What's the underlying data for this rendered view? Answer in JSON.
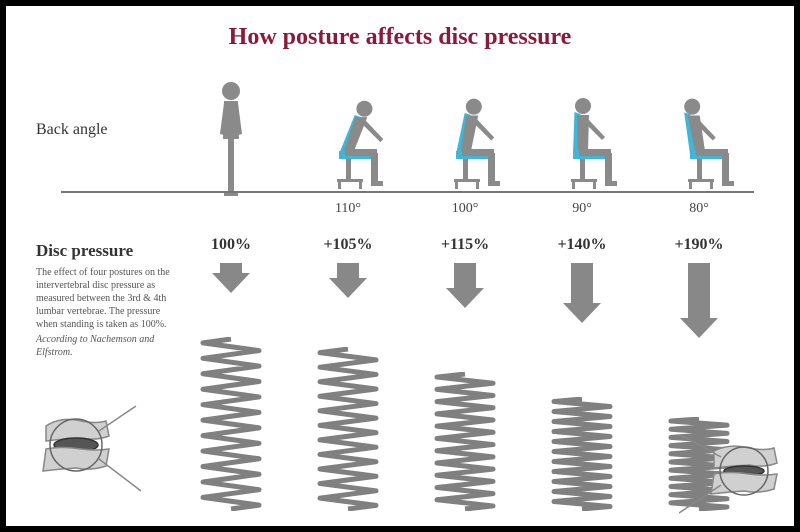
{
  "title": "How posture affects disc pressure",
  "labels": {
    "back_angle": "Back angle",
    "disc_pressure": "Disc pressure"
  },
  "description": {
    "text": "The effect of four postures on the intervertebral disc pressure as measured between the 3rd & 4th lumbar vertebrae. The pressure when standing is taken as 100%.",
    "attribution": "According to Nachemson and Elfstrom."
  },
  "colors": {
    "title": "#8b1a3a",
    "figure": "#8a8a8a",
    "highlight": "#3fb5d8",
    "arrow": "#888888",
    "spring": "#808080",
    "text": "#333333",
    "ground": "#777777",
    "border": "#000000"
  },
  "postures": [
    {
      "type": "standing",
      "angle": "",
      "pressure": "100%",
      "arrow_height": 30,
      "spring_height": 170,
      "spring_coils": 11
    },
    {
      "type": "sitting",
      "angle": "110°",
      "pressure": "+105%",
      "arrow_height": 35,
      "spring_height": 160,
      "spring_coils": 11,
      "lean": -20
    },
    {
      "type": "sitting",
      "angle": "100°",
      "pressure": "+115%",
      "arrow_height": 45,
      "spring_height": 135,
      "spring_coils": 11,
      "lean": -10
    },
    {
      "type": "sitting",
      "angle": "90°",
      "pressure": "+140%",
      "arrow_height": 60,
      "spring_height": 110,
      "spring_coils": 11,
      "lean": 0
    },
    {
      "type": "sitting",
      "angle": "80°",
      "pressure": "+190%",
      "arrow_height": 75,
      "spring_height": 90,
      "spring_coils": 11,
      "lean": 10
    }
  ],
  "typography": {
    "title_size": 24,
    "label_size": 16,
    "angle_size": 14,
    "pressure_size": 16,
    "description_size": 10
  }
}
